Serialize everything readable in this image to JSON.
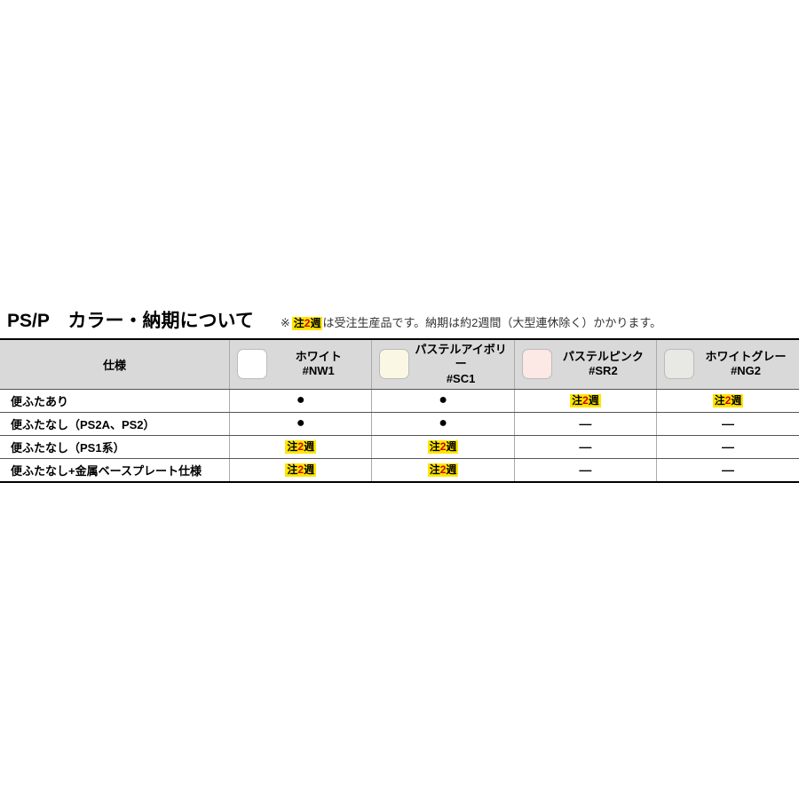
{
  "title": "PS/P　カラー・納期について",
  "note": {
    "asterisk": "※",
    "badge_black1": "注",
    "badge_red": "2",
    "badge_black2": "週",
    "after": "は受注生産品です。納期は約2週間（大型連休除く）かかります。"
  },
  "table": {
    "spec_header": "仕様",
    "colors": [
      {
        "name": "ホワイト",
        "code": "#NW1",
        "swatch": "#ffffff"
      },
      {
        "name": "パステルアイボリー",
        "code": "#SC1",
        "swatch": "#faf7e4"
      },
      {
        "name": "パステルピンク",
        "code": "#SR2",
        "swatch": "#fce8e4"
      },
      {
        "name": "ホワイトグレー",
        "code": "#NG2",
        "swatch": "#e8e8e4"
      }
    ],
    "rows": [
      {
        "spec": "便ふたあり",
        "cells": [
          "dot",
          "dot",
          "badge",
          "badge"
        ]
      },
      {
        "spec": "便ふたなし（PS2A、PS2）",
        "cells": [
          "dot",
          "dot",
          "dash",
          "dash"
        ]
      },
      {
        "spec": "便ふたなし（PS1系）",
        "cells": [
          "badge",
          "badge",
          "dash",
          "dash"
        ]
      },
      {
        "spec": "便ふたなし+金属ベースプレート仕様",
        "cells": [
          "badge",
          "badge",
          "dash",
          "dash"
        ]
      }
    ]
  },
  "cell_symbols": {
    "dot": "●",
    "dash": "—"
  },
  "styles": {
    "header_bg": "#d9d9d9",
    "badge_bg": "#ffe500",
    "badge_red": "#d00000"
  }
}
